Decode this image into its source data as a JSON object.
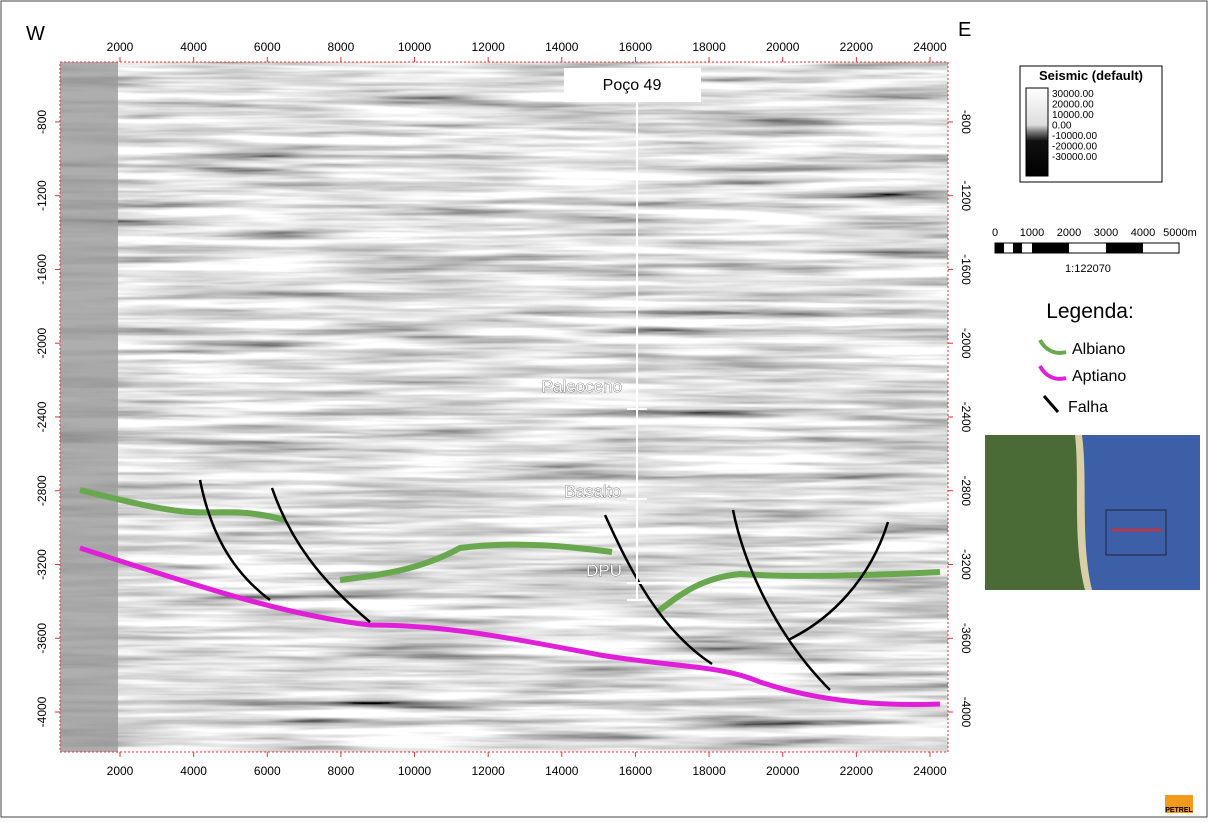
{
  "chart_data": {
    "type": "seismic-section",
    "left_label": "W",
    "right_label": "E",
    "xlim": [
      370,
      24490
    ],
    "ylim": [
      -475,
      -4217
    ],
    "xticks": [
      2000,
      4000,
      6000,
      8000,
      10000,
      12000,
      14000,
      16000,
      18000,
      20000,
      22000,
      24000
    ],
    "yticks": [
      -800,
      -1200,
      -1600,
      -2000,
      -2400,
      -2800,
      -3200,
      -3600,
      -4000
    ]
  },
  "annotations": {
    "well": "Poço 49",
    "markers": [
      "Paleoceno",
      "Basalto",
      "DPU"
    ]
  },
  "colorbar": {
    "title": "Seismic (default)",
    "labels": [
      "30000.00",
      "20000.00",
      "10000.00",
      "0.00",
      "-10000.00",
      "-20000.00",
      "-30000.00"
    ]
  },
  "scale_bar": {
    "labels": [
      "0",
      "1000",
      "2000",
      "3000",
      "4000",
      "5000m"
    ],
    "ratio": "1:122070"
  },
  "legend": {
    "title": "Legenda:",
    "items": [
      "Albiano",
      "Aptiano",
      "Falha"
    ]
  },
  "logo": "PETREL"
}
